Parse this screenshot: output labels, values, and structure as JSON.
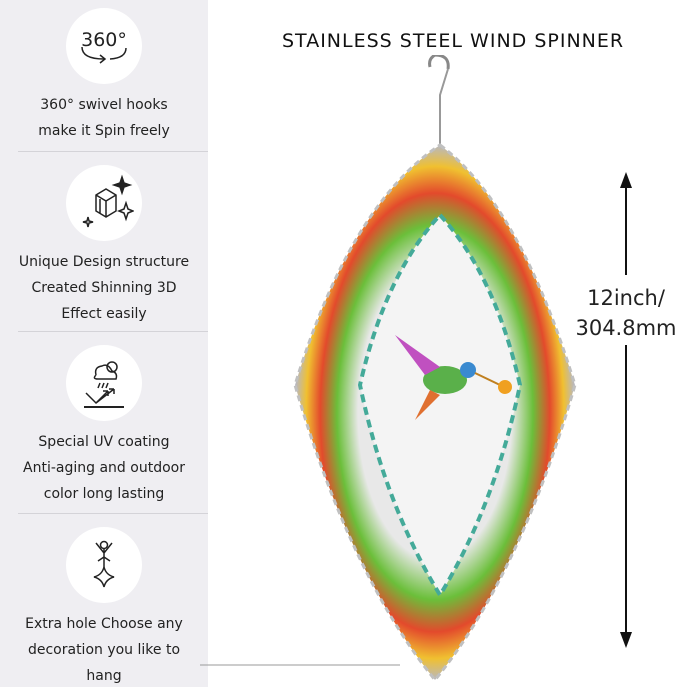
{
  "title": "STAINLESS STEEL WIND SPINNER",
  "dimension": {
    "line1": "12inch/",
    "line2": "304.8mm"
  },
  "features": [
    {
      "icon": "rotate-360-icon",
      "icon_text": "360°",
      "lines": [
        "360° swivel hooks",
        "make it Spin freely"
      ]
    },
    {
      "icon": "sparkle-cube-icon",
      "lines": [
        "Unique Design structure",
        "Created Shinning 3D",
        "Effect easily"
      ]
    },
    {
      "icon": "uv-weather-icon",
      "lines": [
        "Special UV coating",
        "Anti-aging and outdoor",
        "color long lasting"
      ]
    },
    {
      "icon": "hanging-figure-icon",
      "lines": [
        "Extra hole Choose any",
        "decoration you like to",
        "hang"
      ]
    }
  ],
  "colors": {
    "panel": "#efeef2"
  }
}
